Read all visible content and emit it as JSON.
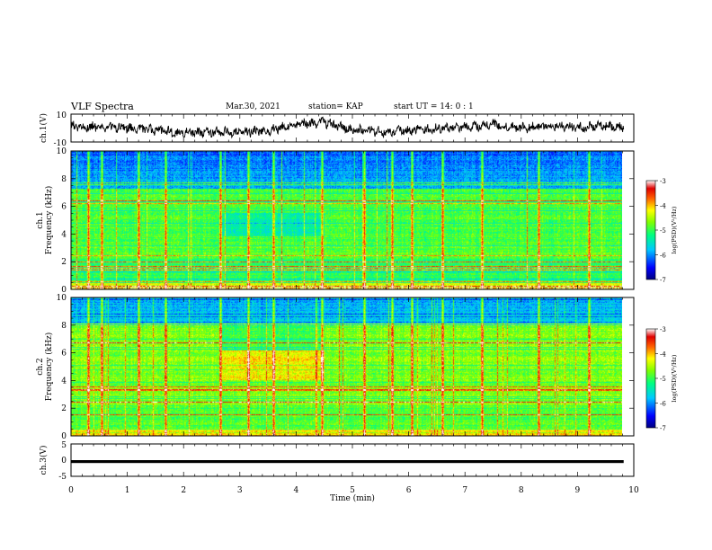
{
  "header": {
    "title": "VLF Spectra",
    "date": "Mar.30, 2021",
    "station": "station= KAP",
    "start": "start  UT =   14: 0  : 1"
  },
  "chart_data": [
    {
      "type": "line",
      "panel": "ch1-waveform",
      "ylabel": "ch.1(V)",
      "ylim": [
        -10,
        10
      ],
      "yticks": [
        "10",
        "-10"
      ],
      "xlim": [
        0,
        10
      ],
      "line_color": "#000000",
      "baseline_profile": [
        {
          "x": 0.0,
          "y": 1.0
        },
        {
          "x": 0.5,
          "y": 0.5
        },
        {
          "x": 1.0,
          "y": 0.0
        },
        {
          "x": 1.5,
          "y": -1.5
        },
        {
          "x": 2.0,
          "y": -3.5
        },
        {
          "x": 2.5,
          "y": -2.5
        },
        {
          "x": 3.0,
          "y": -3.0
        },
        {
          "x": 3.5,
          "y": -2.0
        },
        {
          "x": 4.0,
          "y": 3.0
        },
        {
          "x": 4.5,
          "y": 4.0
        },
        {
          "x": 5.0,
          "y": -1.0
        },
        {
          "x": 5.5,
          "y": -2.5
        },
        {
          "x": 6.0,
          "y": -2.0
        },
        {
          "x": 6.5,
          "y": -0.5
        },
        {
          "x": 7.0,
          "y": 0.5
        },
        {
          "x": 7.5,
          "y": 2.5
        },
        {
          "x": 8.0,
          "y": 0.0
        },
        {
          "x": 8.5,
          "y": 1.5
        },
        {
          "x": 9.0,
          "y": 0.5
        },
        {
          "x": 9.5,
          "y": 1.5
        },
        {
          "x": 9.8,
          "y": 1.0
        }
      ]
    },
    {
      "type": "heatmap",
      "panel": "ch1-spectrogram",
      "ylabel": "ch.1\nFrequency (kHz)",
      "ylabel_lines": [
        "ch.1",
        "Frequency (kHz)"
      ],
      "ylim": [
        0,
        10
      ],
      "yticks": [
        "0",
        "2",
        "4",
        "6",
        "8",
        "10"
      ],
      "xlim": [
        0,
        10
      ],
      "colorbar": {
        "label": "log(PSD)(V²/Hz)",
        "range": [
          -7,
          -3
        ],
        "ticks": [
          "-3",
          "-4",
          "-5",
          "-6",
          "-7"
        ]
      },
      "features": {
        "noise_floor": -4.9,
        "high_band_low_power": [
          7.3,
          10.0
        ],
        "segment_shift_minutes": [
          2.68,
          4.5
        ],
        "impulsive_events_min": [
          0.3,
          0.55,
          1.2,
          1.68,
          2.65,
          3.15,
          3.6,
          4.45,
          5.2,
          5.7,
          6.05,
          6.6,
          7.3,
          8.3,
          9.2
        ]
      }
    },
    {
      "type": "heatmap",
      "panel": "ch2-spectrogram",
      "ylabel": "ch.2\nFrequency (kHz)",
      "ylabel_lines": [
        "ch.2",
        "Frequency (kHz)"
      ],
      "ylim": [
        0,
        10
      ],
      "yticks": [
        "0",
        "2",
        "4",
        "6",
        "8",
        "10"
      ],
      "xlim": [
        0,
        10
      ],
      "colorbar": {
        "label": "log(PSD)(V²/Hz)",
        "range": [
          -7,
          -3
        ],
        "ticks": [
          "-3",
          "-4",
          "-5",
          "-6",
          "-7"
        ]
      },
      "features": {
        "noise_floor": -4.7,
        "high_band_low_power": [
          8.0,
          10.0
        ],
        "segment_shift_minutes": [
          2.68,
          4.5
        ],
        "impulsive_events_min": [
          0.3,
          0.55,
          1.2,
          1.68,
          2.65,
          3.15,
          3.6,
          4.45,
          5.2,
          5.7,
          6.05,
          6.6,
          7.3,
          8.3,
          9.2
        ]
      }
    },
    {
      "type": "line",
      "panel": "ch3-waveform",
      "ylabel": "ch.3(V)",
      "ylim": [
        -5,
        5
      ],
      "yticks": [
        "5",
        "0",
        "-5"
      ],
      "xlim": [
        0,
        10
      ],
      "xlabel": "Time (min)",
      "xticks": [
        "0",
        "1",
        "2",
        "3",
        "4",
        "5",
        "6",
        "7",
        "8",
        "9",
        "10"
      ],
      "band": {
        "y_low": -1.0,
        "y_high": 0.0,
        "x_end": 9.82,
        "color": "#000000"
      }
    }
  ]
}
